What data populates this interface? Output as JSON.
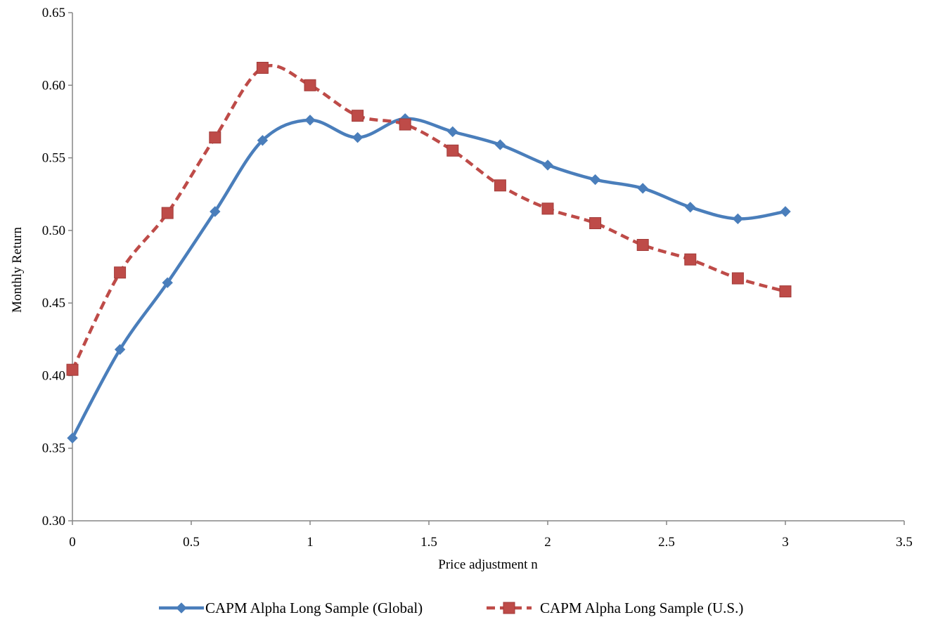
{
  "chart_data": {
    "type": "line",
    "title": "",
    "xlabel": "Price adjustment n",
    "ylabel": "Monthly Return",
    "xlim": [
      0,
      3.5
    ],
    "ylim": [
      0.3,
      0.65
    ],
    "xticks": [
      "0",
      "0.5",
      "1",
      "1.5",
      "2",
      "2.5",
      "3",
      "3.5"
    ],
    "yticks": [
      "0.30",
      "0.35",
      "0.40",
      "0.45",
      "0.50",
      "0.55",
      "0.60",
      "0.65"
    ],
    "grid": false,
    "smoothed": true,
    "legend_position": "bottom",
    "x": [
      0,
      0.2,
      0.4,
      0.6,
      0.8,
      1.0,
      1.2,
      1.4,
      1.6,
      1.8,
      2.0,
      2.2,
      2.4,
      2.6,
      2.8,
      3.0
    ],
    "series": [
      {
        "name": "CAPM Alpha Long Sample (Global)",
        "color": "#4a7ebb",
        "marker": "diamond",
        "line_style": "solid",
        "values": [
          0.357,
          0.418,
          0.464,
          0.513,
          0.562,
          0.576,
          0.564,
          0.577,
          0.568,
          0.559,
          0.545,
          0.535,
          0.529,
          0.516,
          0.508,
          0.513
        ]
      },
      {
        "name": "CAPM Alpha Long Sample (U.S.)",
        "color": "#be4b48",
        "marker": "square",
        "line_style": "dashed",
        "values": [
          0.404,
          0.471,
          0.512,
          0.564,
          0.612,
          0.6,
          0.579,
          0.573,
          0.555,
          0.531,
          0.515,
          0.505,
          0.49,
          0.48,
          0.467,
          0.458
        ]
      }
    ]
  }
}
